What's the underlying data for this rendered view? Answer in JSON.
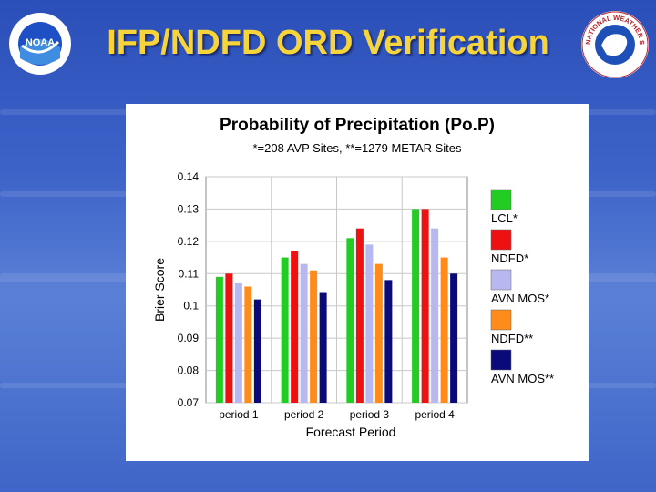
{
  "slide": {
    "title": "IFP/NDFD ORD Verification",
    "noaa_logo_text": "NOAA",
    "nws_logo_text": "NATIONAL WEATHER SERVICE"
  },
  "chart_data": {
    "type": "bar",
    "title": "Probability of Precipitation (Po.P)",
    "subtitle": "*=208 AVP Sites, **=1279 METAR Sites",
    "xlabel": "Forecast Period",
    "ylabel": "Brier Score",
    "ylim": [
      0.07,
      0.14
    ],
    "yticks": [
      "0.14",
      "0.13",
      "0.12",
      "0.11",
      "0.1",
      "0.09",
      "0.08",
      "0.07"
    ],
    "ytick_values": [
      0.14,
      0.13,
      0.12,
      0.11,
      0.1,
      0.09,
      0.08,
      0.07
    ],
    "categories": [
      "period 1",
      "period 2",
      "period 3",
      "period 4"
    ],
    "legend_position": "right",
    "grid": true,
    "series": [
      {
        "name": "LCL*",
        "color": "#22cc22",
        "values": [
          0.109,
          0.115,
          0.121,
          0.13
        ]
      },
      {
        "name": "NDFD*",
        "color": "#ee1111",
        "values": [
          0.11,
          0.117,
          0.124,
          0.13
        ]
      },
      {
        "name": "AVN MOS*",
        "color": "#b8b8f0",
        "values": [
          0.107,
          0.113,
          0.119,
          0.124
        ]
      },
      {
        "name": "NDFD**",
        "color": "#ff8c1a",
        "values": [
          0.106,
          0.111,
          0.113,
          0.115
        ]
      },
      {
        "name": "AVN MOS**",
        "color": "#0a0a7a",
        "values": [
          0.102,
          0.104,
          0.108,
          0.11
        ]
      }
    ]
  }
}
